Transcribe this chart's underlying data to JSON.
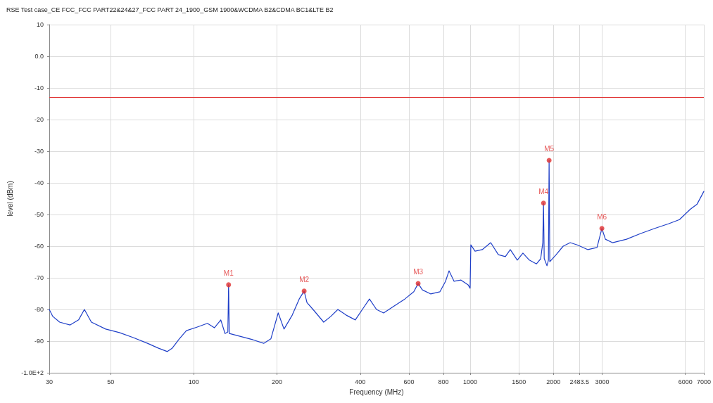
{
  "chart_data": {
    "type": "line",
    "title": "RSE Test case_CE FCC_FCC PART22&24&27_FCC PART 24_1900_GSM 1900&WCDMA B2&CDMA BC1&LTE B2",
    "xlabel": "Frequency (MHz)",
    "ylabel": "level (dBm)",
    "log": "x",
    "grid": true,
    "marker": "none",
    "line_style": "solid",
    "xlim": [
      30,
      7000
    ],
    "ylim": [
      -100,
      10
    ],
    "xticks": [
      30,
      50,
      100,
      200,
      400,
      600,
      800,
      1000,
      1500,
      2000,
      2483.5,
      3000,
      6000,
      7000
    ],
    "yticks": [
      10,
      {
        "value": 0,
        "label": "0.0"
      },
      -10,
      -20,
      -30,
      -40,
      -50,
      -60,
      -70,
      -80,
      -90,
      {
        "value": -100,
        "label": "-1.0E+2"
      }
    ],
    "ref_lines": [
      {
        "axis": "y",
        "value": -13,
        "color": "#e03030"
      }
    ],
    "series": [
      {
        "color": "#1f3fc8",
        "x": [
          30,
          30.9,
          32.7,
          35.7,
          38.3,
          40.2,
          42.6,
          48,
          53.8,
          60.4,
          68,
          74.3,
          80.2,
          83.6,
          88.6,
          94,
          102.5,
          112,
          118.7,
          125.2,
          129.7,
          132.8,
          133.6,
          134.4,
          146,
          164,
          179,
          190,
          202,
          212,
          227,
          240.6,
          250.7,
          256.6,
          270,
          295,
          313,
          332,
          356,
          384,
          407,
          432,
          458,
          486,
          531,
          580,
          625,
          648,
          671,
          720,
          777,
          814,
          838,
          874,
          926,
          982,
          999,
          1005,
          1041,
          1105,
          1186,
          1264,
          1340,
          1396,
          1480,
          1551,
          1636,
          1736,
          1798,
          1830,
          1841,
          1852,
          1895,
          1918,
          1929,
          1940,
          2045,
          2169,
          2300,
          2439,
          2665,
          2875,
          2994,
          3083,
          3270,
          3677,
          4136,
          4651,
          5231,
          5715,
          6242,
          6620,
          7000
        ],
        "values": [
          -80,
          -82.2,
          -84,
          -84.9,
          -83.3,
          -80,
          -84,
          -86.2,
          -87.3,
          -88.9,
          -90.7,
          -92.2,
          -93.3,
          -92.2,
          -89.3,
          -86.7,
          -85.6,
          -84.4,
          -85.8,
          -83.3,
          -87.6,
          -87.1,
          -72.2,
          -87.6,
          -88.4,
          -89.6,
          -90.7,
          -89.3,
          -81.1,
          -86.2,
          -81.8,
          -76.7,
          -74.2,
          -77.8,
          -80,
          -84,
          -82.2,
          -80,
          -81.8,
          -83.3,
          -80,
          -76.7,
          -80,
          -81.1,
          -78.9,
          -76.7,
          -74.4,
          -71.8,
          -73.8,
          -75.1,
          -74.4,
          -71.1,
          -67.8,
          -71.1,
          -70.7,
          -72.2,
          -73.3,
          -59.6,
          -61.6,
          -61.1,
          -58.9,
          -62.7,
          -63.3,
          -61.1,
          -64.4,
          -62.2,
          -64.4,
          -65.6,
          -64,
          -58.9,
          -46.4,
          -63.9,
          -66.2,
          -64.4,
          -32.9,
          -64.9,
          -62.7,
          -60,
          -58.9,
          -59.6,
          -61.1,
          -60.4,
          -54.4,
          -57.8,
          -58.9,
          -57.8,
          -56,
          -54.4,
          -52.9,
          -51.6,
          -48.4,
          -46.7,
          -42.7
        ]
      },
      {
        "type": "scatter",
        "color": "#e03030",
        "marker": "circle",
        "x": [
          133.6,
          250.7,
          648,
          1841,
          1929,
          2994
        ],
        "values": [
          -72.2,
          -74.2,
          -71.8,
          -46.4,
          -32.9,
          -54.4
        ],
        "value_labels": [
          "M1",
          "M2",
          "M3",
          "M4",
          "M5",
          "M6"
        ]
      }
    ]
  }
}
